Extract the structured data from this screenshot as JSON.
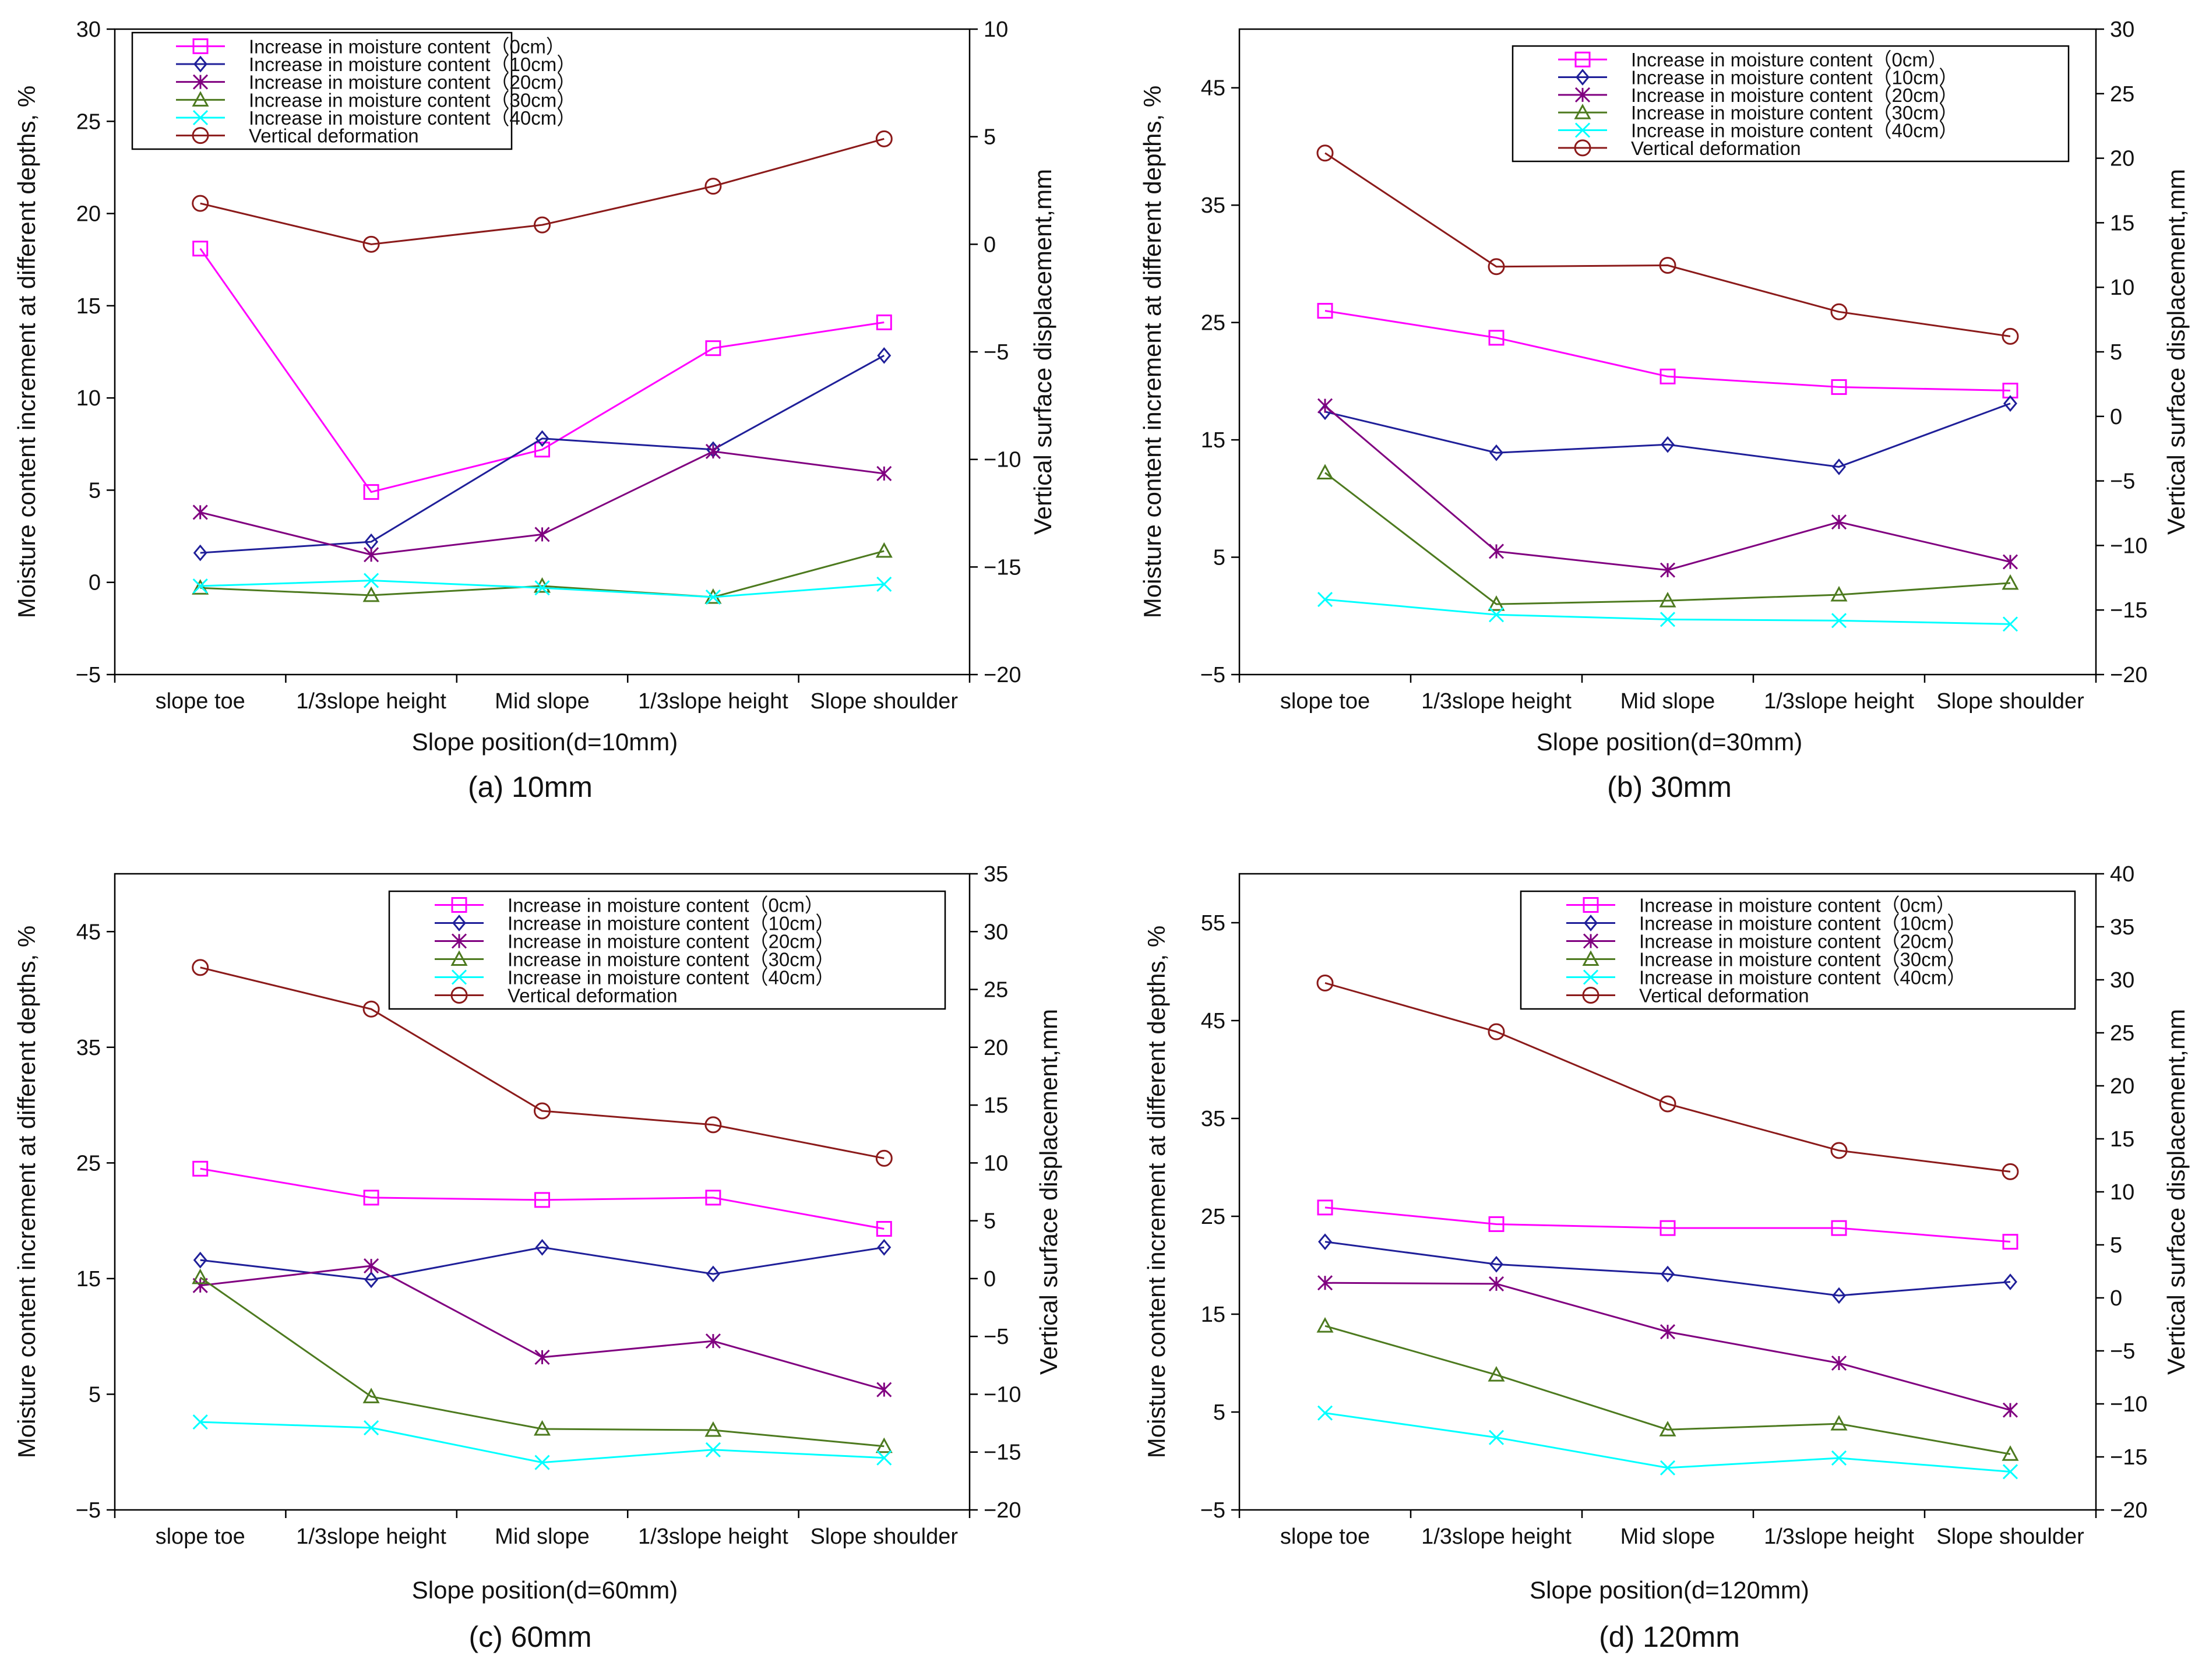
{
  "figure": {
    "panels": [
      "(a) 10mm",
      "(b) 30mm",
      "(c) 60mm",
      "(d) 120mm"
    ]
  },
  "colors": {
    "s0": "#ff00ff",
    "s10": "#1f1f99",
    "s20": "#800080",
    "s30": "#4d7a1f",
    "s40": "#00ffff",
    "def": "#8b1a1a",
    "axis": "#000000"
  },
  "chart_data": [
    {
      "type": "line",
      "caption": "(a) 10mm",
      "xlabel": "Slope position(d=10mm)",
      "ylabel": "Moisture content increment at different depths, %",
      "y2label": "Vertical surface displacement,mm",
      "categories": [
        "slope toe",
        "1/3slope height",
        "Mid slope",
        "1/3slope height",
        "Slope shoulder"
      ],
      "ylim": [
        -5,
        30
      ],
      "yticks": [
        -5,
        0,
        5,
        10,
        15,
        20,
        25,
        30
      ],
      "y2lim": [
        -20,
        10
      ],
      "y2ticks": [
        -20,
        -15,
        -10,
        -5,
        0,
        5,
        10
      ],
      "series": [
        {
          "name": "Increase in moisture content（0cm）",
          "values": [
            18.1,
            4.9,
            7.2,
            12.7,
            14.1
          ],
          "axis": "left",
          "color_key": "s0",
          "marker": "square"
        },
        {
          "name": "Increase in moisture content（10cm）",
          "values": [
            1.6,
            2.2,
            7.8,
            7.2,
            12.3
          ],
          "axis": "left",
          "color_key": "s10",
          "marker": "diamond"
        },
        {
          "name": "Increase in moisture content（20cm）",
          "values": [
            3.8,
            1.5,
            2.6,
            7.1,
            5.9
          ],
          "axis": "left",
          "color_key": "s20",
          "marker": "asterisk"
        },
        {
          "name": "Increase in moisture content（30cm）",
          "values": [
            -0.3,
            -0.7,
            -0.2,
            -0.8,
            1.7
          ],
          "axis": "left",
          "color_key": "s30",
          "marker": "triangle"
        },
        {
          "name": "Increase in moisture content（40cm）",
          "values": [
            -0.2,
            0.1,
            -0.3,
            -0.8,
            -0.1
          ],
          "axis": "left",
          "color_key": "s40",
          "marker": "x"
        },
        {
          "name": "Vertical deformation",
          "values": [
            1.9,
            0.0,
            0.9,
            2.7,
            4.9
          ],
          "axis": "right",
          "color_key": "def",
          "marker": "circle"
        }
      ],
      "legend": "top-left"
    },
    {
      "type": "line",
      "caption": "(b) 30mm",
      "xlabel": "Slope position(d=30mm)",
      "ylabel": "Moisture content increment at different depths, %",
      "y2label": "Vertical surface displacement,mm",
      "categories": [
        "slope toe",
        "1/3slope height",
        "Mid slope",
        "1/3slope height",
        "Slope shoulder"
      ],
      "ylim": [
        -5,
        50
      ],
      "yticks": [
        -5,
        5,
        15,
        25,
        35,
        45
      ],
      "y2lim": [
        -20,
        30
      ],
      "y2ticks": [
        -20,
        -15,
        -10,
        -5,
        0,
        5,
        10,
        15,
        20,
        25,
        30
      ],
      "series": [
        {
          "name": "Increase in moisture content（0cm）",
          "values": [
            26.0,
            23.7,
            20.4,
            19.5,
            19.2
          ],
          "axis": "left",
          "color_key": "s0",
          "marker": "square"
        },
        {
          "name": "Increase in moisture content（10cm）",
          "values": [
            17.4,
            13.9,
            14.6,
            12.7,
            18.1
          ],
          "axis": "left",
          "color_key": "s10",
          "marker": "diamond"
        },
        {
          "name": "Increase in moisture content（20cm）",
          "values": [
            17.9,
            5.5,
            3.9,
            8.0,
            4.6
          ],
          "axis": "left",
          "color_key": "s20",
          "marker": "asterisk"
        },
        {
          "name": "Increase in moisture content（30cm）",
          "values": [
            12.2,
            1.0,
            1.3,
            1.8,
            2.8
          ],
          "axis": "left",
          "color_key": "s30",
          "marker": "triangle"
        },
        {
          "name": "Increase in moisture content（40cm）",
          "values": [
            1.4,
            0.1,
            -0.3,
            -0.4,
            -0.7
          ],
          "axis": "left",
          "color_key": "s40",
          "marker": "x"
        },
        {
          "name": "Vertical deformation",
          "values": [
            20.4,
            11.6,
            11.7,
            8.1,
            6.2
          ],
          "axis": "right",
          "color_key": "def",
          "marker": "circle"
        }
      ],
      "legend": "top-right"
    },
    {
      "type": "line",
      "caption": "(c) 60mm",
      "xlabel": "Slope position(d=60mm)",
      "ylabel": "Moisture content increment at different depths, %",
      "y2label": "Vertical surface displacement,mm",
      "categories": [
        "slope toe",
        "1/3slope height",
        "Mid slope",
        "1/3slope height",
        "Slope shoulder"
      ],
      "ylim": [
        -5,
        50
      ],
      "yticks": [
        -5,
        5,
        15,
        25,
        35,
        45
      ],
      "y2lim": [
        -20,
        35
      ],
      "y2ticks": [
        -20,
        -15,
        -10,
        -5,
        0,
        5,
        10,
        15,
        20,
        25,
        30,
        35
      ],
      "series": [
        {
          "name": "Increase in moisture content（0cm）",
          "values": [
            24.5,
            22.0,
            21.8,
            22.0,
            19.3
          ],
          "axis": "left",
          "color_key": "s0",
          "marker": "square"
        },
        {
          "name": "Increase in moisture content（10cm）",
          "values": [
            16.6,
            14.9,
            17.7,
            15.4,
            17.7
          ],
          "axis": "left",
          "color_key": "s10",
          "marker": "diamond"
        },
        {
          "name": "Increase in moisture content（20cm）",
          "values": [
            14.4,
            16.1,
            8.2,
            9.6,
            5.4
          ],
          "axis": "left",
          "color_key": "s20",
          "marker": "asterisk"
        },
        {
          "name": "Increase in moisture content（30cm）",
          "values": [
            15.1,
            4.8,
            2.0,
            1.9,
            0.5
          ],
          "axis": "left",
          "color_key": "s30",
          "marker": "triangle"
        },
        {
          "name": "Increase in moisture content（40cm）",
          "values": [
            2.6,
            2.1,
            -0.9,
            0.2,
            -0.5
          ],
          "axis": "left",
          "color_key": "s40",
          "marker": "x"
        },
        {
          "name": "Vertical deformation",
          "values": [
            26.9,
            23.3,
            14.5,
            13.3,
            10.4
          ],
          "axis": "right",
          "color_key": "def",
          "marker": "circle"
        }
      ],
      "legend": "top-right"
    },
    {
      "type": "line",
      "caption": "(d) 120mm",
      "xlabel": "Slope position(d=120mm)",
      "ylabel": "Moisture content increment at different depths, %",
      "y2label": "Vertical surface displacement,mm",
      "categories": [
        "slope toe",
        "1/3slope height",
        "Mid slope",
        "1/3slope height",
        "Slope shoulder"
      ],
      "ylim": [
        -5,
        60
      ],
      "yticks": [
        -5,
        5,
        15,
        25,
        35,
        45,
        55
      ],
      "y2lim": [
        -20,
        40
      ],
      "y2ticks": [
        -20,
        -15,
        -10,
        -5,
        0,
        5,
        10,
        15,
        20,
        25,
        30,
        35,
        40
      ],
      "series": [
        {
          "name": "Increase in moisture content（0cm）",
          "values": [
            25.9,
            24.2,
            23.8,
            23.8,
            22.4
          ],
          "axis": "left",
          "color_key": "s0",
          "marker": "square"
        },
        {
          "name": "Increase in moisture content（10cm）",
          "values": [
            22.4,
            20.1,
            19.1,
            16.9,
            18.3
          ],
          "axis": "left",
          "color_key": "s10",
          "marker": "diamond"
        },
        {
          "name": "Increase in moisture content（20cm）",
          "values": [
            18.2,
            18.1,
            13.2,
            10.0,
            5.2
          ],
          "axis": "left",
          "color_key": "s20",
          "marker": "asterisk"
        },
        {
          "name": "Increase in moisture content（30cm）",
          "values": [
            13.8,
            8.8,
            3.2,
            3.8,
            0.7
          ],
          "axis": "left",
          "color_key": "s30",
          "marker": "triangle"
        },
        {
          "name": "Increase in moisture content（40cm）",
          "values": [
            4.9,
            2.4,
            -0.7,
            0.3,
            -1.1
          ],
          "axis": "left",
          "color_key": "s40",
          "marker": "x"
        },
        {
          "name": "Vertical deformation",
          "values": [
            29.7,
            25.1,
            18.3,
            13.9,
            11.9
          ],
          "axis": "right",
          "color_key": "def",
          "marker": "circle"
        }
      ],
      "legend": "top-right"
    }
  ]
}
